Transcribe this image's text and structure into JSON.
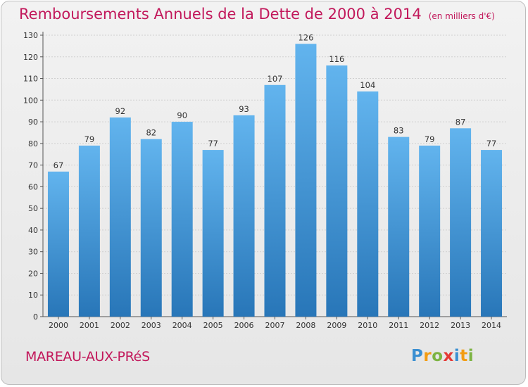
{
  "title": "Remboursements Annuels de la Dette de 2000 à 2014",
  "unit": "(en milliers d'€)",
  "town": "MAREAU-AUX-PRéS",
  "logo": {
    "text": "Proxiti",
    "letters": [
      {
        "ch": "P",
        "color": "#3a8fd1"
      },
      {
        "ch": "r",
        "color": "#f39c12"
      },
      {
        "ch": "o",
        "color": "#7cb342"
      },
      {
        "ch": "x",
        "color": "#e53935"
      },
      {
        "ch": "i",
        "color": "#3a8fd1"
      },
      {
        "ch": "t",
        "color": "#f39c12"
      },
      {
        "ch": "i",
        "color": "#7cb342"
      }
    ]
  },
  "colors": {
    "accent": "#c2185b",
    "bar_top": "#62b4ee",
    "bar_bottom": "#2876b8"
  },
  "chart_data": {
    "type": "bar",
    "categories": [
      "2000",
      "2001",
      "2002",
      "2003",
      "2004",
      "2005",
      "2006",
      "2007",
      "2008",
      "2009",
      "2010",
      "2011",
      "2012",
      "2013",
      "2014"
    ],
    "values": [
      67,
      79,
      92,
      82,
      90,
      77,
      93,
      107,
      126,
      116,
      104,
      83,
      79,
      87,
      77
    ],
    "ylim": [
      0,
      130
    ],
    "yticks": [
      0,
      10,
      20,
      30,
      40,
      50,
      60,
      70,
      80,
      90,
      100,
      110,
      120,
      130
    ],
    "grid": true,
    "data_labels": true
  }
}
